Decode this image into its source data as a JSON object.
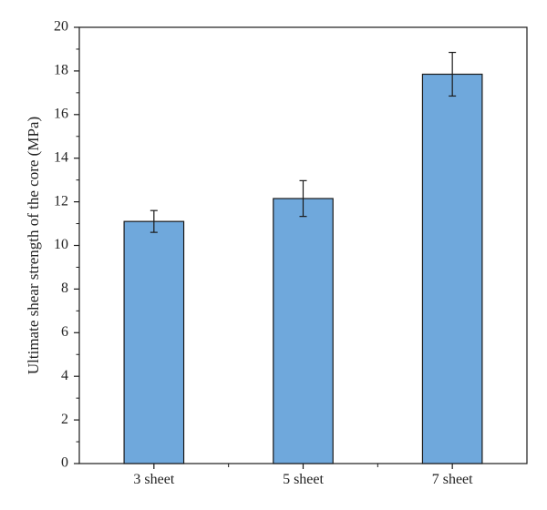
{
  "chart_data": {
    "type": "bar",
    "categories": [
      "3 sheet",
      "5 sheet",
      "7 sheet"
    ],
    "values": [
      11.1,
      12.15,
      17.85
    ],
    "errors": [
      0.5,
      0.82,
      1.0
    ],
    "xlabel": "",
    "ylabel": "Ultimate shear strength of the core (MPa)",
    "ylim": [
      0,
      20
    ],
    "yticks": [
      0,
      2,
      4,
      6,
      8,
      10,
      12,
      14,
      16,
      18,
      20
    ],
    "grid": false,
    "legend": "none",
    "bar_color": "#6fa8dc",
    "bar_edge_color": "#1a1a1a"
  }
}
